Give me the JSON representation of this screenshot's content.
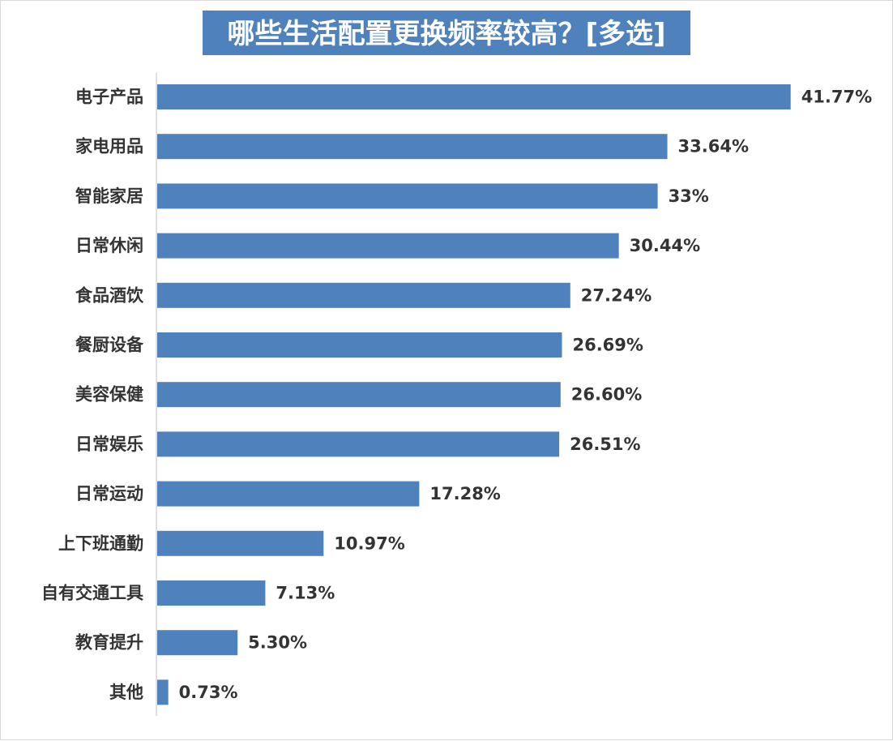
{
  "chart_data": {
    "type": "bar",
    "orientation": "horizontal",
    "title": "哪些生活配置更换频率较高？[多选]",
    "categories": [
      "电子产品",
      "家电用品",
      "智能家居",
      "日常休闲",
      "食品酒饮",
      "餐厨设备",
      "美容保健",
      "日常娱乐",
      "日常运动",
      "上下班通勤",
      "自有交通工具",
      "教育提升",
      "其他"
    ],
    "values": [
      41.77,
      33.64,
      33,
      30.44,
      27.24,
      26.69,
      26.6,
      26.51,
      17.28,
      10.97,
      7.13,
      5.3,
      0.73
    ],
    "value_labels": [
      "41.77%",
      "33.64%",
      "33%",
      "30.44%",
      "27.24%",
      "26.69%",
      "26.60%",
      "26.51%",
      "17.28%",
      "10.97%",
      "7.13%",
      "5.30%",
      "0.73%"
    ],
    "xlim": [
      0,
      42
    ],
    "grid": false,
    "legend": "none",
    "colors": {
      "bar": "#4f81bd",
      "title_background": "#4f81bd",
      "title_text": "#ffffff",
      "axis": "#bfbfbf",
      "label": "#333333"
    }
  }
}
